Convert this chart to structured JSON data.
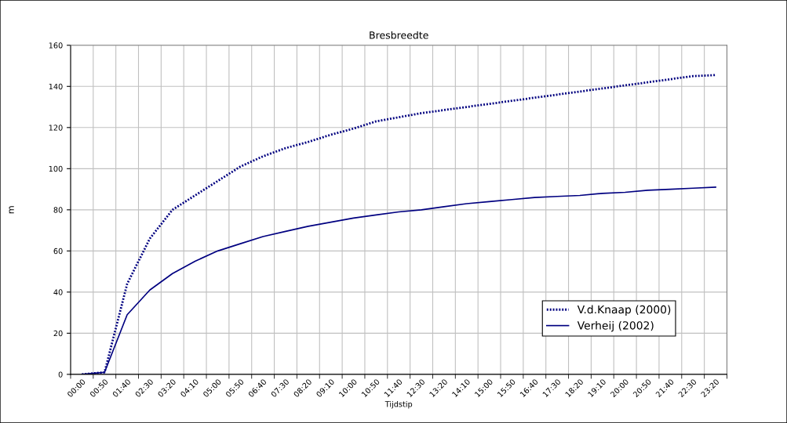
{
  "chart_data": {
    "type": "line",
    "title": "Bresbreedte",
    "xlabel": "Tijdstip",
    "ylabel": "m",
    "categories": [
      "00:00",
      "00:50",
      "01:40",
      "02:30",
      "03:20",
      "04:10",
      "05:00",
      "05:50",
      "06:40",
      "07:30",
      "08:20",
      "09:10",
      "10:00",
      "10:50",
      "11:40",
      "12:30",
      "13:20",
      "14:10",
      "15:00",
      "15:50",
      "16:40",
      "17:30",
      "18:20",
      "19:10",
      "20:00",
      "20:50",
      "21:40",
      "22:30",
      "23:20"
    ],
    "series": [
      {
        "name": "V.d.Knaap (2000)",
        "color": "#000080",
        "line_style": "dotted",
        "values": [
          0,
          1,
          44,
          66,
          80,
          87,
          94,
          101,
          106,
          110,
          113,
          116.5,
          119.5,
          123,
          125,
          127,
          128.5,
          130,
          131.5,
          133,
          134.5,
          136,
          137.5,
          139,
          140.5,
          142,
          143.5,
          145,
          145.5
        ]
      },
      {
        "name": "Verheij (2002)",
        "color": "#000080",
        "line_style": "solid",
        "values": [
          0,
          1,
          29,
          41,
          49,
          55,
          60,
          63.5,
          67,
          69.5,
          72,
          74,
          76,
          77.5,
          79,
          80,
          81.5,
          83,
          84,
          85,
          86,
          86.5,
          87,
          88,
          88.5,
          89.5,
          90,
          90.5,
          91
        ]
      }
    ],
    "ylim": [
      0,
      160
    ],
    "yticks": [
      0,
      20,
      40,
      60,
      80,
      100,
      120,
      140,
      160
    ],
    "grid": true,
    "legend": "bottom right",
    "marker": "none"
  }
}
